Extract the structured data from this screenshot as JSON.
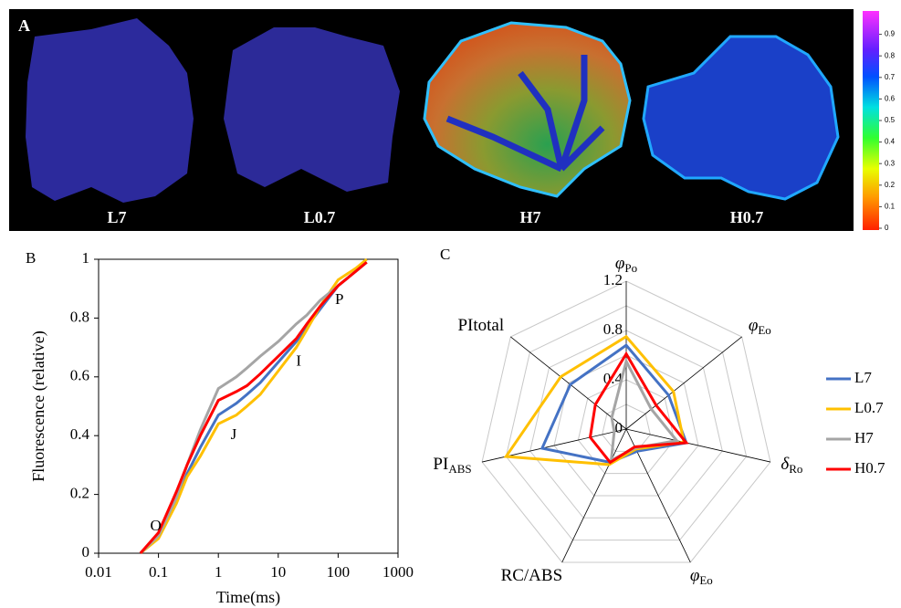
{
  "panel_a": {
    "label": "A",
    "images": [
      "L7",
      "L0.7",
      "H7",
      "H0.7"
    ],
    "clim": [
      0,
      1
    ],
    "colorbar_ticks": [
      0,
      0.1,
      0.2,
      0.3,
      0.4,
      0.5,
      0.6,
      0.7,
      0.8,
      0.9
    ]
  },
  "chart_data": [
    {
      "type": "line",
      "panel": "B",
      "x_label": "Time(ms)",
      "y_label": "Fluorescence (relative)",
      "log_x": true,
      "xlim": [
        0.01,
        1000
      ],
      "xticks": [
        0.01,
        0.1,
        1,
        10,
        100,
        1000
      ],
      "ylim": [
        0,
        1
      ],
      "yticks": [
        0,
        0.2,
        0.4,
        0.6,
        0.8,
        1
      ],
      "annotations": [
        "O",
        "J",
        "I",
        "P"
      ],
      "x": [
        0.05,
        0.1,
        0.2,
        0.3,
        0.5,
        1,
        2,
        3,
        5,
        10,
        20,
        30,
        50,
        100,
        200,
        300
      ],
      "series": [
        {
          "name": "L7",
          "color": "#4472c4",
          "values": [
            0,
            0.06,
            0.18,
            0.27,
            0.36,
            0.47,
            0.51,
            0.54,
            0.58,
            0.65,
            0.72,
            0.77,
            0.83,
            0.91,
            0.96,
            0.99
          ]
        },
        {
          "name": "L0.7",
          "color": "#ffc000",
          "values": [
            0,
            0.05,
            0.17,
            0.26,
            0.33,
            0.44,
            0.47,
            0.5,
            0.54,
            0.62,
            0.7,
            0.76,
            0.84,
            0.93,
            0.97,
            1
          ]
        },
        {
          "name": "H7",
          "color": "#a5a5a5",
          "values": [
            0,
            0.06,
            0.19,
            0.3,
            0.42,
            0.56,
            0.6,
            0.63,
            0.67,
            0.72,
            0.78,
            0.81,
            0.86,
            0.91,
            0.96,
            0.99
          ]
        },
        {
          "name": "H0.7",
          "color": "#ff0000",
          "values": [
            0,
            0.07,
            0.21,
            0.3,
            0.4,
            0.52,
            0.55,
            0.57,
            0.61,
            0.67,
            0.73,
            0.78,
            0.84,
            0.91,
            0.96,
            0.99
          ]
        }
      ]
    },
    {
      "type": "radar",
      "panel": "C",
      "axes": [
        {
          "main": "φ",
          "sub": "Po"
        },
        {
          "main": "φ",
          "sub": "Eo"
        },
        {
          "main": "δ",
          "sub": "Ro"
        },
        {
          "main": "φ",
          "sub": "Eo"
        },
        {
          "main": "RC/ABS"
        },
        {
          "main": "PI",
          "sub": "ABS"
        },
        {
          "main": "PItotal"
        }
      ],
      "rlim": [
        0,
        1.2
      ],
      "rticks": [
        0,
        0.4,
        0.8,
        1.2
      ],
      "rgrid": [
        0.2,
        0.4,
        0.6,
        0.8,
        1,
        1.2
      ],
      "series": [
        {
          "name": "L7",
          "color": "#4472c4",
          "values": [
            0.68,
            0.44,
            0.5,
            0.2,
            0.3,
            0.7,
            0.58
          ]
        },
        {
          "name": "L0.7",
          "color": "#ffc000",
          "values": [
            0.75,
            0.49,
            0.48,
            0.18,
            0.32,
            1,
            0.68
          ]
        },
        {
          "name": "H7",
          "color": "#a5a5a5",
          "values": [
            0.55,
            0.26,
            0.42,
            0.17,
            0.28,
            0.1,
            0.15
          ]
        },
        {
          "name": "H0.7",
          "color": "#ff0000",
          "values": [
            0.61,
            0.31,
            0.5,
            0.16,
            0.3,
            0.3,
            0.32
          ]
        }
      ]
    }
  ]
}
